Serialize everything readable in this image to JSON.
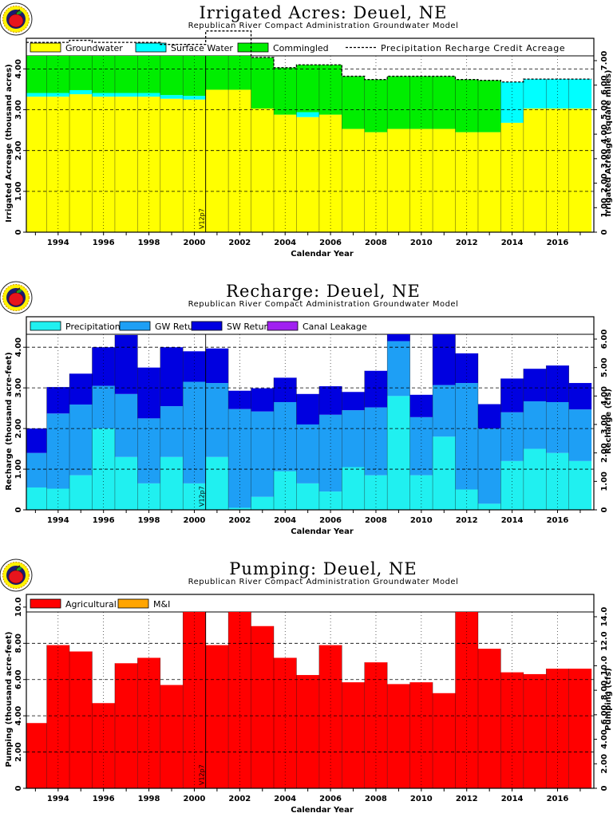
{
  "colors": {
    "groundwater": "#ffff00",
    "surface_water": "#00ffff",
    "commingled": "#00ee00",
    "precipitation": "#20f0f0",
    "gw_returns": "#1e9ff5",
    "sw_returns": "#0000e0",
    "canal_leakage": "#a020f0",
    "agricultural": "#ff0000",
    "mi": "#ffa500",
    "logo_red": "#e8141c",
    "logo_ring": "#fff200"
  },
  "chart_data": [
    {
      "type": "area",
      "title": "Irrigated Acres: Deuel, NE",
      "subtitle": "Republican River Compact Administration Groundwater Model",
      "xlabel": "Calendar Year",
      "ylabel": "Irrigated Acreage (thousand acres)",
      "ylabel_right": "Irrigated Acreage (square miles)",
      "stacked": true,
      "step": true,
      "x": [
        1993,
        1994,
        1995,
        1996,
        1997,
        1998,
        1999,
        2000,
        2001,
        2002,
        2003,
        2004,
        2005,
        2006,
        2007,
        2008,
        2009,
        2010,
        2011,
        2012,
        2013,
        2014,
        2015,
        2016,
        2017
      ],
      "xlim": [
        1992.6,
        2017.6
      ],
      "ylim": [
        0,
        4.75
      ],
      "yticks": [
        0,
        1.0,
        2.0,
        3.0,
        4.0
      ],
      "yticklabels": [
        "0",
        "1.00",
        "2.00",
        "3.00",
        "4.00"
      ],
      "yticks_right": [
        "0",
        "1.00",
        "2.00",
        "3.00",
        "4.00",
        "5.00",
        "6.00",
        "7.00"
      ],
      "xticklabels": [
        "1994",
        "1996",
        "1998",
        "2000",
        "2002",
        "2004",
        "2006",
        "2008",
        "2010",
        "2012",
        "2014",
        "2016"
      ],
      "series": [
        {
          "name": "Groundwater",
          "color_key": "groundwater",
          "values": [
            3.32,
            3.32,
            3.38,
            3.32,
            3.32,
            3.32,
            3.27,
            3.25,
            3.49,
            3.49,
            3.03,
            2.88,
            2.82,
            2.88,
            2.53,
            2.45,
            2.53,
            2.53,
            2.53,
            2.45,
            2.45,
            2.68,
            3.03,
            3.03,
            3.03
          ]
        },
        {
          "name": "Surface Water",
          "color_key": "surface_water",
          "values": [
            0.09,
            0.09,
            0.1,
            0.09,
            0.09,
            0.09,
            0.09,
            0.09,
            0,
            0,
            0,
            0,
            0.12,
            0,
            0,
            0,
            0,
            0,
            0,
            0,
            0,
            1.0,
            0.72,
            0.72,
            0.72
          ]
        },
        {
          "name": "Commingled",
          "color_key": "commingled",
          "values": [
            1.24,
            1.24,
            1.22,
            1.24,
            1.24,
            1.24,
            1.24,
            1.26,
            1.44,
            1.44,
            1.25,
            1.15,
            1.16,
            1.22,
            1.29,
            1.29,
            1.29,
            1.29,
            1.29,
            1.29,
            1.27,
            0,
            0,
            0,
            0
          ]
        }
      ],
      "line_series": [
        {
          "name": "Precipitation Recharge Credit Acreage",
          "values": [
            4.65,
            4.65,
            4.7,
            4.65,
            4.65,
            4.65,
            4.6,
            4.6,
            4.93,
            4.93,
            4.28,
            4.03,
            4.1,
            4.1,
            3.82,
            3.74,
            3.82,
            3.82,
            3.82,
            3.74,
            3.72,
            3.68,
            3.75,
            3.75,
            3.75
          ]
        }
      ],
      "marker": {
        "x": 2000.5,
        "label": "V12p7"
      }
    },
    {
      "type": "area",
      "title": "Recharge: Deuel, NE",
      "subtitle": "Republican River Compact Administration Groundwater Model",
      "xlabel": "Calendar Year",
      "ylabel": "Recharge (thousand acre-feet)",
      "ylabel_right": "Recharge (cfs)",
      "stacked": true,
      "step": true,
      "x": [
        1993,
        1994,
        1995,
        1996,
        1997,
        1998,
        1999,
        2000,
        2001,
        2002,
        2003,
        2004,
        2005,
        2006,
        2007,
        2008,
        2009,
        2010,
        2011,
        2012,
        2013,
        2014,
        2015,
        2016,
        2017
      ],
      "xlim": [
        1992.6,
        2017.6
      ],
      "ylim": [
        0,
        4.75
      ],
      "yticks": [
        0,
        1.0,
        2.0,
        3.0,
        4.0
      ],
      "yticklabels": [
        "0",
        "1.00",
        "2.00",
        "3.00",
        "4.00"
      ],
      "yticks_right": [
        "0",
        "1.00",
        "2.00",
        "3.00",
        "4.00",
        "5.00",
        "6.00"
      ],
      "xticklabels": [
        "1994",
        "1996",
        "1998",
        "2000",
        "2002",
        "2004",
        "2006",
        "2008",
        "2010",
        "2012",
        "2014",
        "2016"
      ],
      "series": [
        {
          "name": "Precipitation",
          "color_key": "precipitation",
          "values": [
            0.55,
            0.52,
            0.85,
            2.0,
            1.3,
            0.65,
            1.3,
            0.65,
            1.3,
            0.05,
            0.32,
            0.95,
            0.65,
            0.45,
            1.05,
            0.85,
            2.8,
            0.85,
            1.8,
            0.5,
            0.15,
            1.2,
            1.5,
            1.4,
            1.2
          ]
        },
        {
          "name": "GW Returns",
          "color_key": "gw_returns",
          "values": [
            0.85,
            1.85,
            1.74,
            1.05,
            1.55,
            1.6,
            1.25,
            2.5,
            1.82,
            2.43,
            2.1,
            1.7,
            1.45,
            1.89,
            1.4,
            1.67,
            1.35,
            1.43,
            1.27,
            2.62,
            1.85,
            1.2,
            1.17,
            1.25,
            1.27
          ]
        },
        {
          "name": "SW Returns",
          "color_key": "sw_returns",
          "values": [
            0.6,
            0.65,
            0.76,
            0.95,
            1.45,
            1.25,
            1.45,
            0.75,
            0.85,
            0.45,
            0.57,
            0.6,
            0.75,
            0.7,
            0.45,
            0.9,
            0.7,
            0.55,
            1.45,
            0.73,
            0.6,
            0.83,
            0.8,
            0.9,
            0.65
          ]
        },
        {
          "name": "Canal Leakage",
          "color_key": "canal_leakage",
          "values": [
            0,
            0,
            0,
            0,
            0,
            0,
            0,
            0,
            0,
            0,
            0,
            0,
            0,
            0,
            0,
            0,
            0,
            0,
            0,
            0,
            0,
            0,
            0,
            0,
            0
          ]
        }
      ],
      "marker": {
        "x": 2000.5,
        "label": "V12p7"
      }
    },
    {
      "type": "area",
      "title": "Pumping: Deuel, NE",
      "subtitle": "Republican River Compact Administration Groundwater Model",
      "xlabel": "Calendar Year",
      "ylabel": "Pumping (thousand acre-feet)",
      "ylabel_right": "Pumping (cfs)",
      "stacked": true,
      "step": true,
      "x": [
        1993,
        1994,
        1995,
        1996,
        1997,
        1998,
        1999,
        2000,
        2001,
        2002,
        2003,
        2004,
        2005,
        2006,
        2007,
        2008,
        2009,
        2010,
        2011,
        2012,
        2013,
        2014,
        2015,
        2016,
        2017
      ],
      "xlim": [
        1992.6,
        2017.6
      ],
      "ylim": [
        0,
        10.7
      ],
      "yticks": [
        0,
        2.0,
        4.0,
        6.0,
        8.0,
        10.0
      ],
      "yticklabels": [
        "0",
        "2.00",
        "4.00",
        "6.00",
        "8.00",
        "10.0"
      ],
      "yticks_right": [
        "0",
        "2.00",
        "4.00",
        "6.00",
        "8.00",
        "10.0",
        "12.0",
        "14.0"
      ],
      "xticklabels": [
        "1994",
        "1996",
        "1998",
        "2000",
        "2002",
        "2004",
        "2006",
        "2008",
        "2010",
        "2012",
        "2014",
        "2016"
      ],
      "series": [
        {
          "name": "Agricultural",
          "color_key": "agricultural",
          "values": [
            3.6,
            7.9,
            7.55,
            4.7,
            6.9,
            7.2,
            5.7,
            10.7,
            7.9,
            10.5,
            8.95,
            7.2,
            6.25,
            7.9,
            5.85,
            6.95,
            5.75,
            5.85,
            5.25,
            10.7,
            7.7,
            6.4,
            6.3,
            6.6,
            6.6
          ]
        },
        {
          "name": "M&I",
          "color_key": "mi",
          "values": [
            0,
            0,
            0,
            0,
            0,
            0,
            0,
            0,
            0,
            0,
            0,
            0,
            0,
            0,
            0,
            0,
            0,
            0,
            0,
            0,
            0,
            0,
            0,
            0,
            0
          ]
        }
      ],
      "marker": {
        "x": 2000.5,
        "label": "V12p7"
      }
    }
  ]
}
